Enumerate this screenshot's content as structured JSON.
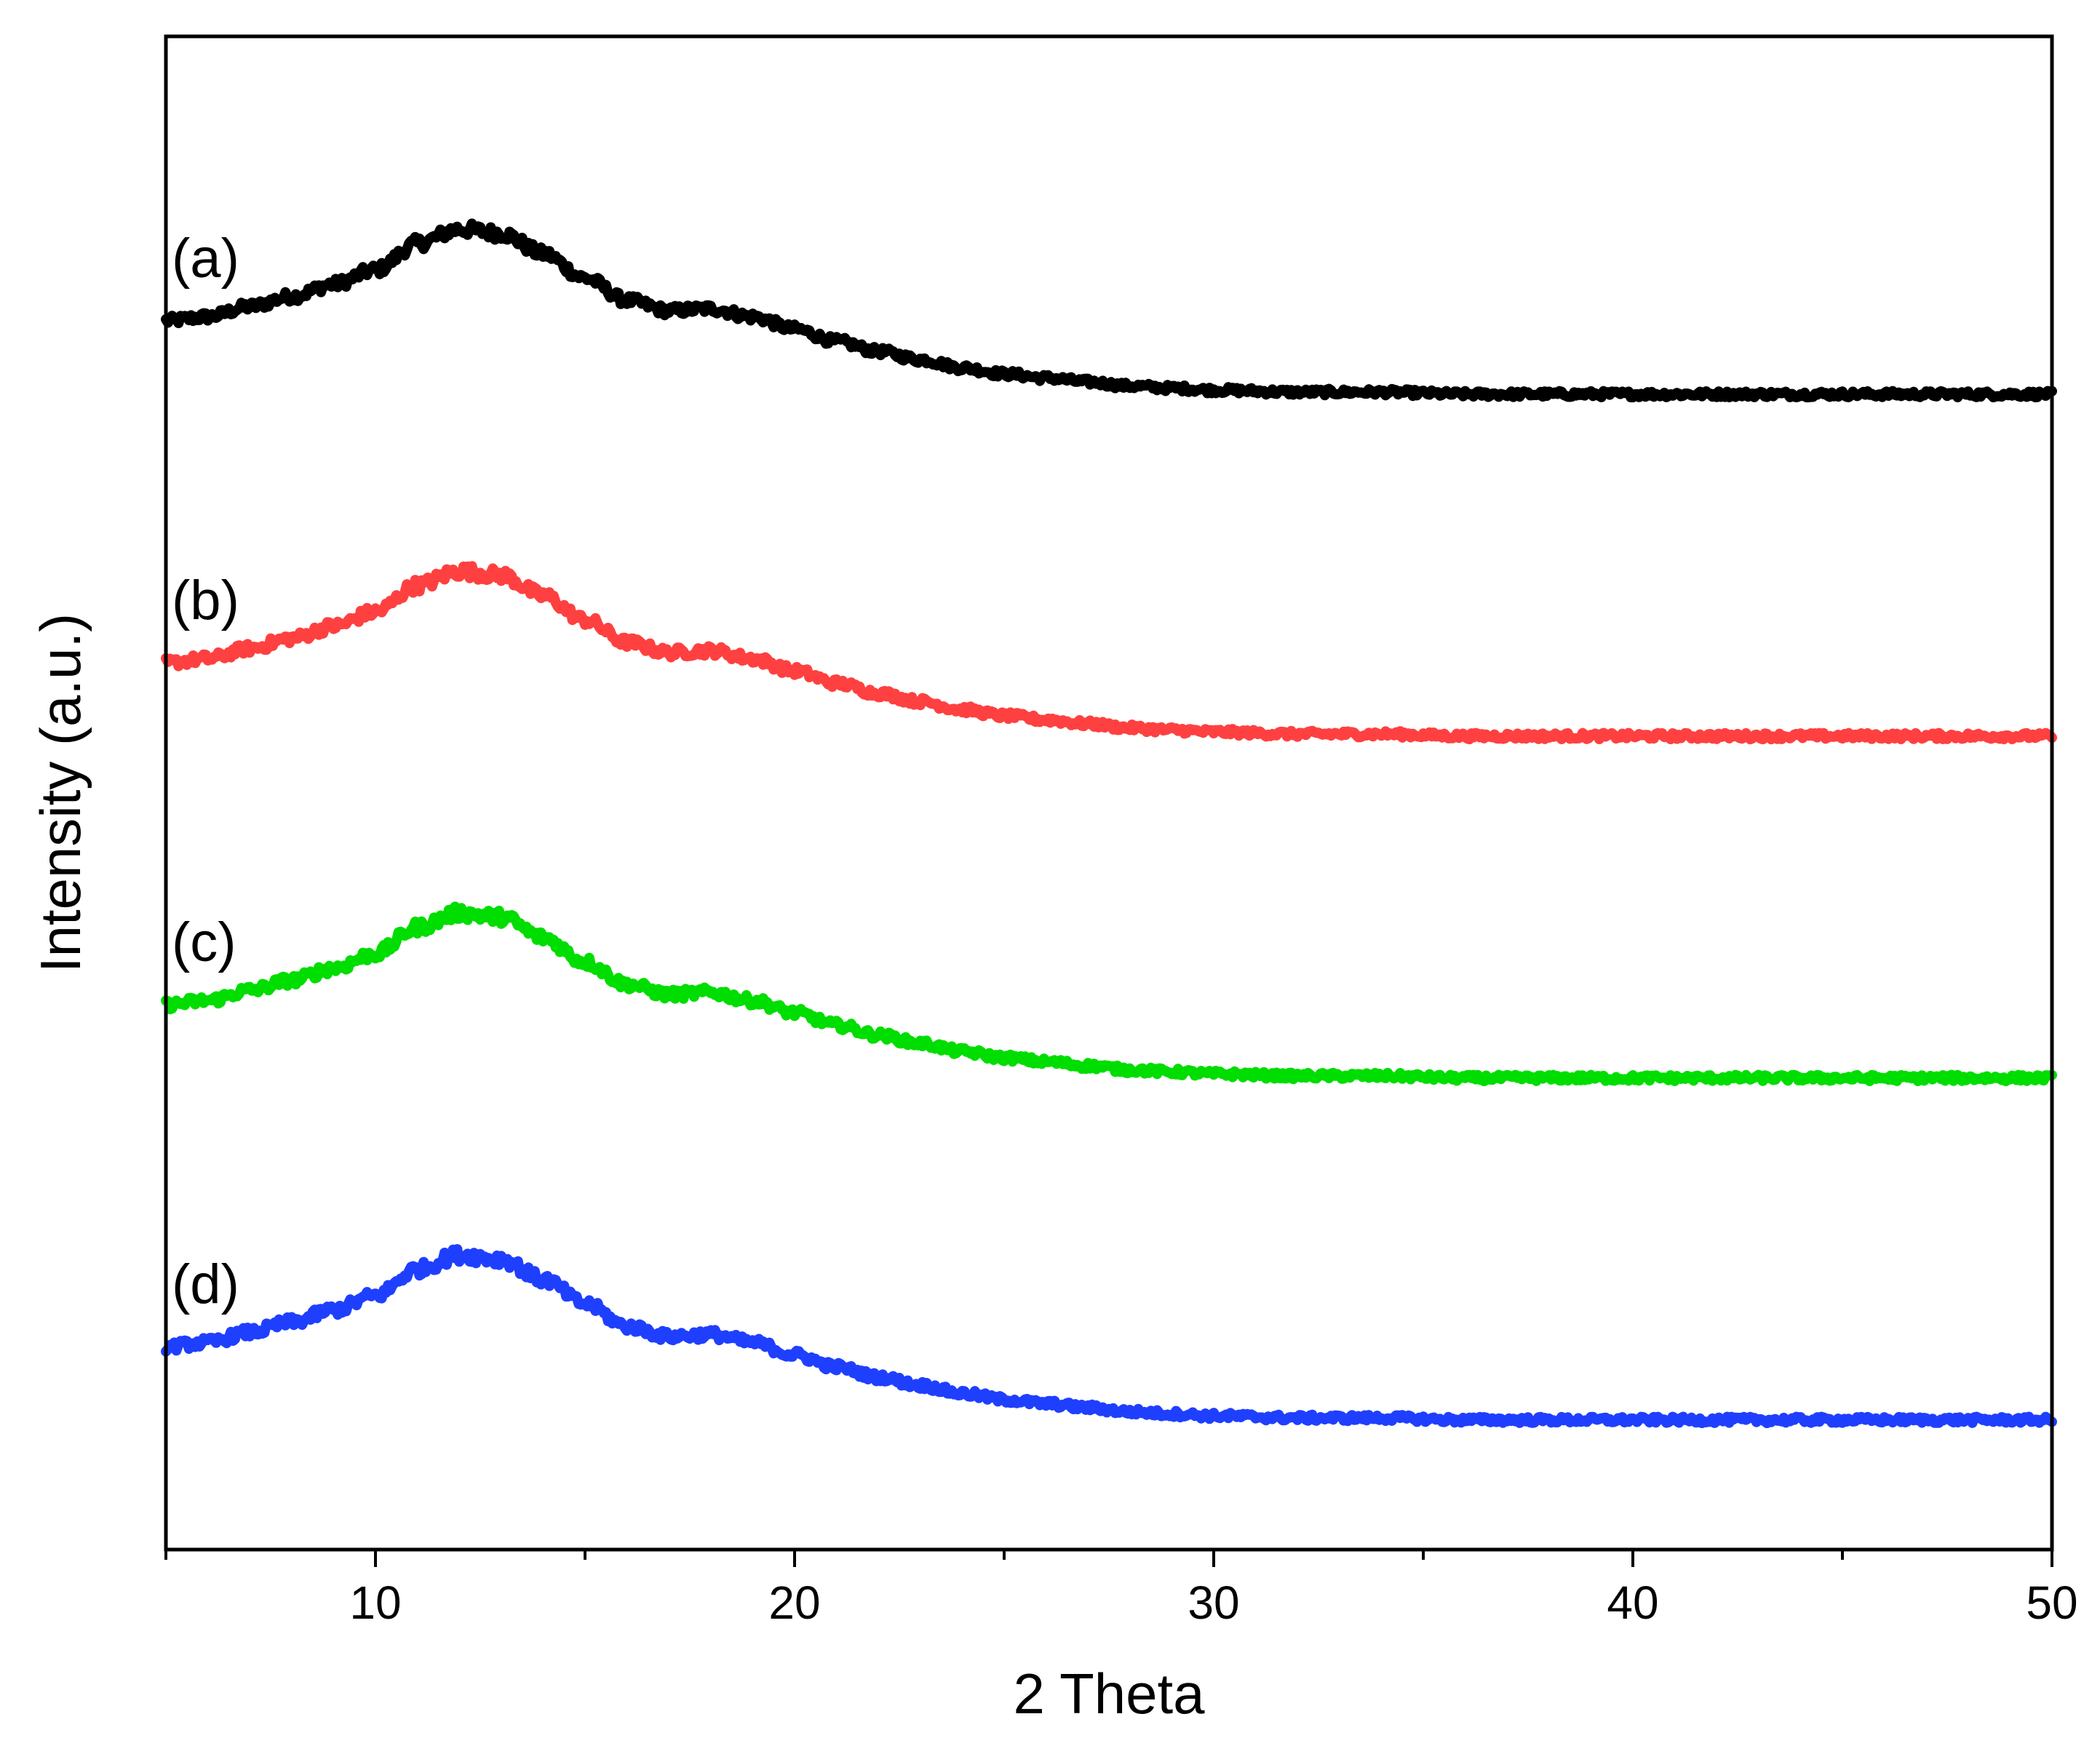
{
  "chart_data": {
    "type": "line",
    "title": "",
    "xlabel": "2 Theta",
    "ylabel": "Intensity (a.u.)",
    "xlim": [
      5,
      50
    ],
    "xticks": [
      10,
      20,
      30,
      40,
      50
    ],
    "xtick_labels": [
      "10",
      "20",
      "30",
      "40",
      "50"
    ],
    "y_ticks_shown": false,
    "x": [
      5,
      6,
      7,
      8,
      9,
      10,
      11,
      12,
      13,
      14,
      15,
      16,
      17,
      18,
      19,
      20,
      21,
      22,
      23,
      24,
      25,
      26,
      27,
      28,
      29,
      30,
      32,
      34,
      36,
      38,
      40,
      42,
      44,
      46,
      48,
      50
    ],
    "series": [
      {
        "name": "(a)",
        "label": "(a)",
        "color": "#000000",
        "offset": 3.0,
        "values": [
          0.55,
          0.57,
          0.62,
          0.67,
          0.73,
          0.8,
          0.93,
          1.0,
          0.98,
          0.88,
          0.76,
          0.65,
          0.6,
          0.61,
          0.57,
          0.51,
          0.45,
          0.4,
          0.36,
          0.32,
          0.29,
          0.27,
          0.25,
          0.23,
          0.22,
          0.21,
          0.2,
          0.2,
          0.19,
          0.19,
          0.19,
          0.19,
          0.19,
          0.19,
          0.19,
          0.19
        ]
      },
      {
        "name": "(b)",
        "label": "(b)",
        "color": "#ff4040",
        "offset": 2.0,
        "values": [
          0.55,
          0.57,
          0.62,
          0.67,
          0.73,
          0.8,
          0.93,
          1.0,
          0.98,
          0.88,
          0.76,
          0.65,
          0.6,
          0.61,
          0.57,
          0.51,
          0.45,
          0.4,
          0.36,
          0.32,
          0.29,
          0.27,
          0.25,
          0.23,
          0.22,
          0.21,
          0.2,
          0.2,
          0.19,
          0.19,
          0.19,
          0.19,
          0.19,
          0.19,
          0.19,
          0.19
        ]
      },
      {
        "name": "(c)",
        "label": "(c)",
        "color": "#00dd00",
        "offset": 1.0,
        "values": [
          0.55,
          0.57,
          0.62,
          0.67,
          0.73,
          0.8,
          0.93,
          1.0,
          0.98,
          0.88,
          0.76,
          0.65,
          0.6,
          0.61,
          0.57,
          0.51,
          0.45,
          0.4,
          0.36,
          0.32,
          0.29,
          0.27,
          0.25,
          0.23,
          0.22,
          0.21,
          0.2,
          0.2,
          0.19,
          0.19,
          0.19,
          0.19,
          0.19,
          0.19,
          0.19,
          0.19
        ]
      },
      {
        "name": "(d)",
        "label": "(d)",
        "color": "#1f3fff",
        "offset": 0.0,
        "values": [
          0.55,
          0.57,
          0.62,
          0.67,
          0.73,
          0.8,
          0.93,
          1.0,
          0.98,
          0.88,
          0.76,
          0.65,
          0.6,
          0.61,
          0.57,
          0.51,
          0.45,
          0.4,
          0.36,
          0.32,
          0.29,
          0.27,
          0.25,
          0.23,
          0.22,
          0.21,
          0.2,
          0.2,
          0.19,
          0.19,
          0.19,
          0.19,
          0.19,
          0.19,
          0.19,
          0.19
        ]
      }
    ]
  }
}
